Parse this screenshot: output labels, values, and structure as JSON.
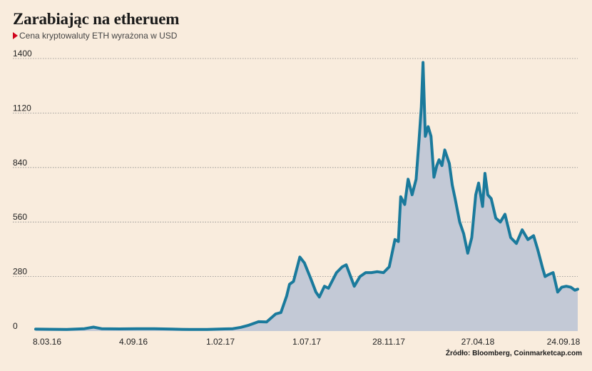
{
  "title": "Zarabiając na etheruem",
  "subtitle": "Cena kryptowaluty ETH wyrażona w USD",
  "source": "Źródło: Bloomberg, Coinmarketcap.com",
  "colors": {
    "line": "#1a7a9c",
    "area": "#c3c9d6",
    "background": "#f9ecdd",
    "grid": "#888888",
    "marker": "#d0021b"
  },
  "chart_data": {
    "type": "area",
    "title": "Zarabiając na etheruem",
    "subtitle": "Cena kryptowaluty ETH wyrażona w USD",
    "ylim": [
      0,
      1400
    ],
    "yticks": [
      0,
      280,
      560,
      840,
      1120,
      1400
    ],
    "x_tick_labels": [
      "8.03.16",
      "4.09.16",
      "1.02.17",
      "1.07.17",
      "28.11.17",
      "27.04.18",
      "24.09.18"
    ],
    "x_range": [
      "2016-03-08",
      "2018-10-10"
    ],
    "grid": "horizontal dotted",
    "series": [
      {
        "x": [
          "2016-03-08",
          "2016-04-01",
          "2016-05-01",
          "2016-06-01",
          "2016-06-17",
          "2016-07-01",
          "2016-08-01",
          "2016-09-01",
          "2016-10-01",
          "2016-11-01",
          "2016-12-01",
          "2017-01-01",
          "2017-02-01",
          "2017-02-15",
          "2017-03-01",
          "2017-03-15",
          "2017-04-01",
          "2017-04-15",
          "2017-05-01",
          "2017-05-10",
          "2017-05-20",
          "2017-05-25",
          "2017-06-01",
          "2017-06-12",
          "2017-06-20",
          "2017-07-01",
          "2017-07-10",
          "2017-07-16",
          "2017-07-25",
          "2017-08-01",
          "2017-08-15",
          "2017-08-25",
          "2017-09-01",
          "2017-09-15",
          "2017-09-25",
          "2017-10-05",
          "2017-10-15",
          "2017-10-25",
          "2017-11-05",
          "2017-11-15",
          "2017-11-25",
          "2017-12-01",
          "2017-12-05",
          "2017-12-12",
          "2017-12-18",
          "2017-12-25",
          "2018-01-01",
          "2018-01-06",
          "2018-01-10",
          "2018-01-13",
          "2018-01-17",
          "2018-01-22",
          "2018-01-27",
          "2018-02-01",
          "2018-02-06",
          "2018-02-10",
          "2018-02-15",
          "2018-02-20",
          "2018-02-28",
          "2018-03-05",
          "2018-03-10",
          "2018-03-18",
          "2018-03-25",
          "2018-04-01",
          "2018-04-08",
          "2018-04-15",
          "2018-04-20",
          "2018-04-27",
          "2018-05-01",
          "2018-05-06",
          "2018-05-12",
          "2018-05-20",
          "2018-05-28",
          "2018-06-05",
          "2018-06-15",
          "2018-06-25",
          "2018-07-05",
          "2018-07-15",
          "2018-07-25",
          "2018-08-01",
          "2018-08-10",
          "2018-08-14",
          "2018-08-20",
          "2018-08-28",
          "2018-09-05",
          "2018-09-12",
          "2018-09-20",
          "2018-09-28",
          "2018-10-05",
          "2018-10-10"
        ],
        "values": [
          10,
          9,
          8,
          12,
          20,
          12,
          11,
          12,
          12,
          10,
          8,
          8,
          11,
          12,
          19,
          30,
          48,
          47,
          88,
          95,
          180,
          240,
          255,
          380,
          350,
          270,
          200,
          175,
          230,
          220,
          300,
          330,
          340,
          230,
          280,
          300,
          300,
          305,
          300,
          330,
          470,
          460,
          690,
          650,
          780,
          700,
          780,
          980,
          1150,
          1380,
          1000,
          1050,
          1000,
          790,
          850,
          880,
          850,
          930,
          860,
          750,
          680,
          560,
          500,
          400,
          480,
          700,
          760,
          640,
          810,
          700,
          680,
          580,
          560,
          600,
          480,
          450,
          520,
          470,
          490,
          420,
          320,
          280,
          290,
          300,
          200,
          225,
          230,
          225,
          210,
          215
        ]
      }
    ]
  }
}
